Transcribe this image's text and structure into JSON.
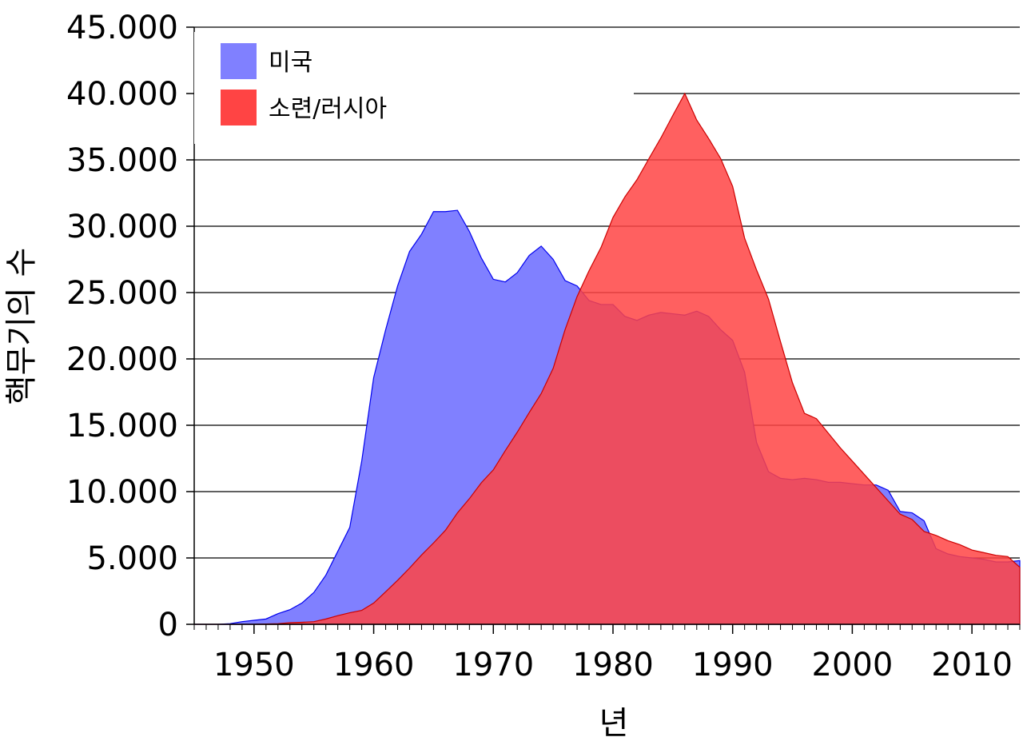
{
  "chart_data": {
    "type": "area",
    "xlabel": "년",
    "ylabel": "핵무기의 수",
    "xlim": [
      1945,
      2014
    ],
    "ylim": [
      0,
      45000
    ],
    "x_ticks": [
      1950,
      1960,
      1970,
      1980,
      1990,
      2000,
      2010
    ],
    "x_tick_labels": [
      "1950",
      "1960",
      "1970",
      "1980",
      "1990",
      "2000",
      "2010"
    ],
    "y_ticks": [
      0,
      5000,
      10000,
      15000,
      20000,
      25000,
      30000,
      35000,
      40000,
      45000
    ],
    "y_tick_labels": [
      "0",
      "5.000",
      "10.000",
      "15.000",
      "20.000",
      "25.000",
      "30.000",
      "35.000",
      "40.000",
      "45.000"
    ],
    "grid": "horizontal",
    "legend_position": "top-left",
    "x": [
      1945,
      1946,
      1947,
      1948,
      1949,
      1950,
      1951,
      1952,
      1953,
      1954,
      1955,
      1956,
      1957,
      1958,
      1959,
      1960,
      1961,
      1962,
      1963,
      1964,
      1965,
      1966,
      1967,
      1968,
      1969,
      1970,
      1971,
      1972,
      1973,
      1974,
      1975,
      1976,
      1977,
      1978,
      1979,
      1980,
      1981,
      1982,
      1983,
      1984,
      1985,
      1986,
      1987,
      1988,
      1989,
      1990,
      1991,
      1992,
      1993,
      1994,
      1995,
      1996,
      1997,
      1998,
      1999,
      2000,
      2001,
      2002,
      2003,
      2004,
      2005,
      2006,
      2007,
      2008,
      2009,
      2010,
      2011,
      2012,
      2013,
      2014
    ],
    "series": [
      {
        "name": "미국",
        "color": "#8080ff",
        "stroke": "#0000ee",
        "values": [
          0,
          0,
          0,
          50,
          200,
          300,
          400,
          800,
          1100,
          1600,
          2400,
          3700,
          5500,
          7300,
          12300,
          18600,
          22200,
          25500,
          28100,
          29400,
          31100,
          31100,
          31200,
          29600,
          27600,
          26000,
          25800,
          26500,
          27800,
          28500,
          27500,
          25900,
          25500,
          24400,
          24100,
          24100,
          23200,
          22900,
          23300,
          23500,
          23400,
          23300,
          23600,
          23200,
          22200,
          21400,
          19000,
          13700,
          11500,
          11000,
          10900,
          11000,
          10900,
          10700,
          10700,
          10600,
          10500,
          10500,
          10100,
          8500,
          8400,
          7800,
          5700,
          5300,
          5100,
          5000,
          4900,
          4700,
          4700,
          4800
        ]
      },
      {
        "name": "소련/러시아",
        "color": "#ff4444",
        "stroke": "#cc0000",
        "values": [
          0,
          0,
          0,
          0,
          1,
          5,
          25,
          50,
          120,
          150,
          200,
          400,
          650,
          870,
          1050,
          1600,
          2450,
          3320,
          4240,
          5220,
          6130,
          7090,
          8400,
          9470,
          10670,
          11640,
          13090,
          14480,
          15960,
          17390,
          19290,
          22220,
          24700,
          26650,
          28400,
          30660,
          32220,
          33500,
          35090,
          36650,
          38350,
          40000,
          38000,
          36600,
          35100,
          33000,
          29100,
          26700,
          24500,
          21300,
          18200,
          15900,
          15500,
          14400,
          13300,
          12300,
          11300,
          10300,
          9300,
          8300,
          7900,
          7000,
          6700,
          6300,
          6000,
          5600,
          5400,
          5200,
          5100,
          4300
        ]
      }
    ]
  }
}
